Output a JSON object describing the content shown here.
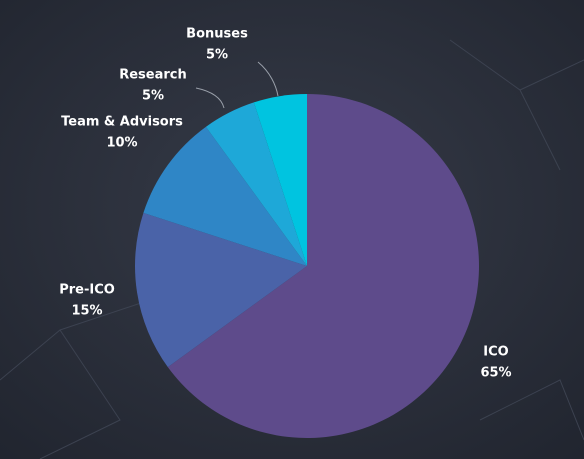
{
  "chart_data": {
    "type": "pie",
    "categories": [
      "ICO",
      "Pre-ICO",
      "Team & Advisors",
      "Research",
      "Bonuses"
    ],
    "values": [
      65,
      15,
      10,
      5,
      5
    ],
    "value_labels": [
      "65%",
      "15%",
      "10%",
      "5%",
      "5%"
    ],
    "colors": [
      "#5e4b8b",
      "#4a63a8",
      "#2f86c6",
      "#1ea8d8",
      "#00c4e0"
    ]
  }
}
